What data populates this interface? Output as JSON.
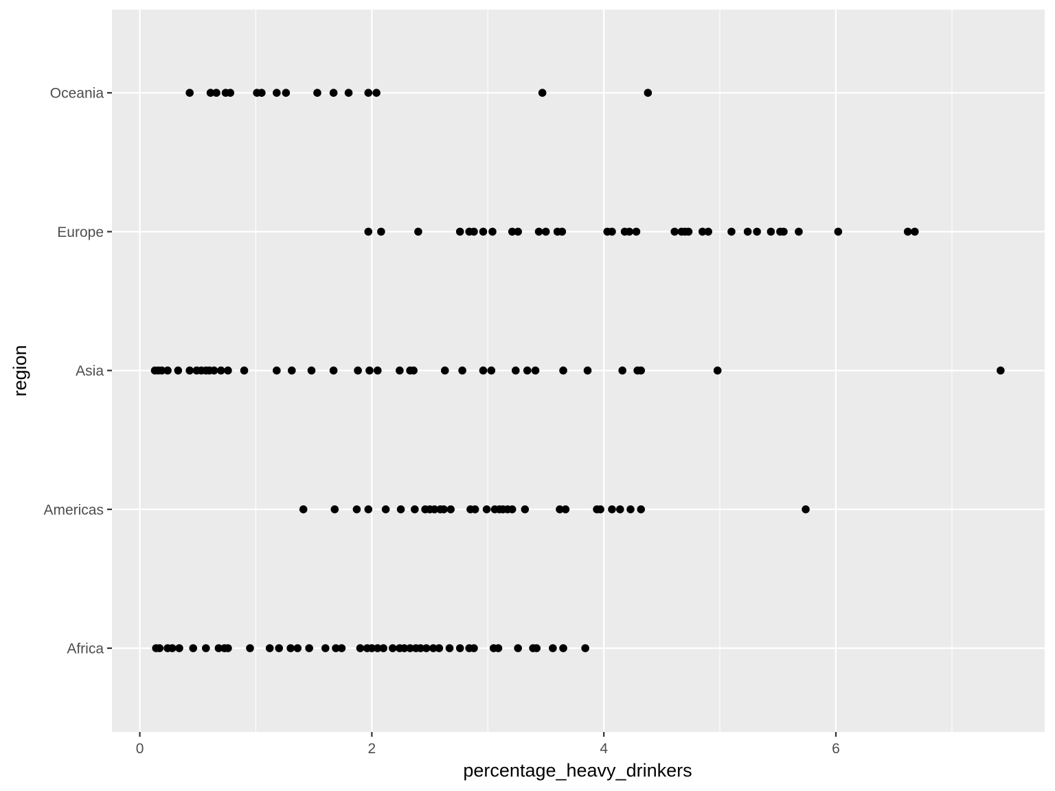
{
  "chart_data": {
    "type": "scatter",
    "title": "",
    "xlabel": "percentage_heavy_drinkers",
    "ylabel": "region",
    "xlim": [
      -0.24,
      7.8
    ],
    "x_ticks": [
      0,
      2,
      4,
      6
    ],
    "x_tick_labels": [
      "0",
      "2",
      "4",
      "6"
    ],
    "categories": [
      "Africa",
      "Americas",
      "Asia",
      "Europe",
      "Oceania"
    ],
    "grid": true,
    "legend": "none",
    "colors": {
      "panel": "#ebebeb",
      "grid": "#ffffff",
      "point": "#000000",
      "axis_text": "#4d4d4d",
      "tick": "#333333"
    },
    "series": [
      {
        "category": "Oceania",
        "x": [
          0.43,
          0.61,
          0.66,
          0.74,
          0.78,
          1.01,
          1.05,
          1.18,
          1.26,
          1.53,
          1.67,
          1.8,
          1.97,
          2.04,
          3.47,
          4.38
        ]
      },
      {
        "category": "Europe",
        "x": [
          1.97,
          2.08,
          2.4,
          2.76,
          2.84,
          2.88,
          2.96,
          3.04,
          3.21,
          3.26,
          3.44,
          3.5,
          3.6,
          3.64,
          4.03,
          4.07,
          4.18,
          4.22,
          4.28,
          4.61,
          4.67,
          4.7,
          4.73,
          4.85,
          4.9,
          5.1,
          5.24,
          5.32,
          5.44,
          5.52,
          5.55,
          5.68,
          6.02,
          6.62,
          6.68
        ]
      },
      {
        "category": "Asia",
        "x": [
          0.13,
          0.16,
          0.19,
          0.24,
          0.33,
          0.43,
          0.49,
          0.53,
          0.57,
          0.6,
          0.64,
          0.7,
          0.76,
          0.9,
          1.18,
          1.31,
          1.48,
          1.67,
          1.88,
          1.98,
          2.05,
          2.24,
          2.33,
          2.36,
          2.63,
          2.78,
          2.96,
          3.03,
          3.24,
          3.34,
          3.41,
          3.65,
          3.86,
          4.16,
          4.29,
          4.32,
          4.98,
          7.42
        ]
      },
      {
        "category": "Americas",
        "x": [
          1.41,
          1.68,
          1.87,
          1.97,
          2.12,
          2.25,
          2.37,
          2.46,
          2.5,
          2.54,
          2.59,
          2.62,
          2.68,
          2.85,
          2.89,
          2.99,
          3.06,
          3.1,
          3.13,
          3.17,
          3.21,
          3.32,
          3.62,
          3.67,
          3.94,
          3.97,
          4.07,
          4.14,
          4.23,
          4.32,
          5.74
        ]
      },
      {
        "category": "Africa",
        "x": [
          0.14,
          0.17,
          0.24,
          0.28,
          0.34,
          0.46,
          0.57,
          0.68,
          0.73,
          0.76,
          0.95,
          1.12,
          1.2,
          1.3,
          1.36,
          1.46,
          1.6,
          1.69,
          1.74,
          1.9,
          1.96,
          2.0,
          2.05,
          2.1,
          2.18,
          2.24,
          2.28,
          2.33,
          2.38,
          2.42,
          2.47,
          2.53,
          2.58,
          2.67,
          2.76,
          2.84,
          2.88,
          3.05,
          3.09,
          3.26,
          3.39,
          3.42,
          3.56,
          3.65,
          3.84
        ]
      }
    ]
  }
}
